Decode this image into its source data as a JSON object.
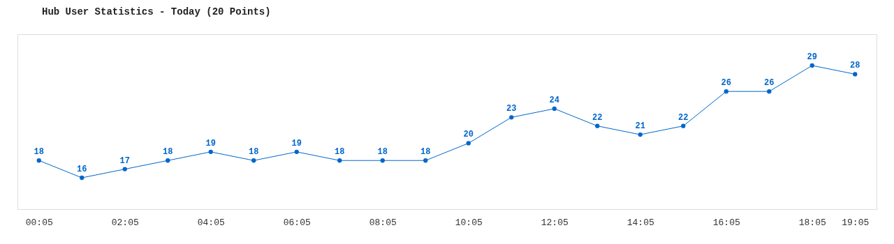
{
  "chart_data": {
    "type": "line",
    "title": "Hub User Statistics - Today (20 Points)",
    "categories": [
      "00:05",
      null,
      "02:05",
      null,
      "04:05",
      null,
      "06:05",
      null,
      "08:05",
      null,
      "10:05",
      null,
      "12:05",
      null,
      "14:05",
      null,
      "16:05",
      null,
      "18:05",
      "19:05"
    ],
    "series": [
      {
        "color": "#0066cc",
        "values": [
          18,
          16,
          17,
          18,
          19,
          18,
          19,
          18,
          18,
          18,
          20,
          23,
          24,
          22,
          21,
          22,
          26,
          26,
          29,
          28
        ]
      }
    ],
    "data_labels": true,
    "marker": "circle",
    "line_style": "solid",
    "grid": false,
    "legend": false
  }
}
